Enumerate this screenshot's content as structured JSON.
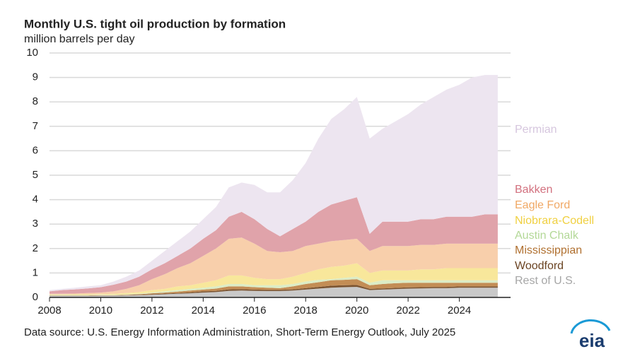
{
  "chart_data": {
    "type": "stacked_area",
    "title": "Monthly U.S. tight oil production by formation",
    "subtitle": "million barrels per day",
    "source": "Data source: U.S. Energy Information Administration, Short-Term Energy Outlook, July 2025",
    "logo": "eia",
    "x": [
      2008,
      2008.5,
      2009,
      2009.5,
      2010,
      2010.5,
      2011,
      2011.5,
      2012,
      2012.5,
      2013,
      2013.5,
      2014,
      2014.5,
      2015,
      2015.5,
      2016,
      2016.5,
      2017,
      2017.5,
      2018,
      2018.5,
      2019,
      2019.5,
      2020,
      2020.5,
      2021,
      2021.5,
      2022,
      2022.5,
      2023,
      2023.5,
      2024,
      2024.5,
      2025,
      2025.5
    ],
    "xlim": [
      2008,
      2026
    ],
    "xticks": [
      2008,
      2010,
      2012,
      2014,
      2016,
      2018,
      2020,
      2022,
      2024
    ],
    "ylim": [
      0,
      10
    ],
    "yticks": [
      0,
      1,
      2,
      3,
      4,
      5,
      6,
      7,
      8,
      9,
      10
    ],
    "grid": true,
    "series": [
      {
        "name": "Rest of U.S.",
        "color": "#c9c9c9",
        "label_color": "#a6a6a6",
        "values": [
          0.06,
          0.06,
          0.06,
          0.06,
          0.07,
          0.07,
          0.08,
          0.09,
          0.11,
          0.13,
          0.15,
          0.17,
          0.2,
          0.22,
          0.27,
          0.28,
          0.27,
          0.26,
          0.26,
          0.28,
          0.32,
          0.36,
          0.4,
          0.42,
          0.43,
          0.3,
          0.32,
          0.34,
          0.36,
          0.37,
          0.38,
          0.38,
          0.4,
          0.4,
          0.4,
          0.4
        ]
      },
      {
        "name": "Woodford",
        "color": "#7b5431",
        "label_color": "#6b4423",
        "values": [
          0.01,
          0.01,
          0.01,
          0.01,
          0.01,
          0.01,
          0.01,
          0.02,
          0.02,
          0.03,
          0.03,
          0.04,
          0.05,
          0.05,
          0.06,
          0.06,
          0.05,
          0.05,
          0.05,
          0.05,
          0.06,
          0.07,
          0.08,
          0.08,
          0.08,
          0.05,
          0.05,
          0.05,
          0.05,
          0.05,
          0.05,
          0.05,
          0.05,
          0.05,
          0.05,
          0.05
        ]
      },
      {
        "name": "Mississippian",
        "color": "#c38d55",
        "label_color": "#b07030",
        "values": [
          0.01,
          0.01,
          0.01,
          0.01,
          0.01,
          0.01,
          0.02,
          0.02,
          0.04,
          0.04,
          0.06,
          0.07,
          0.07,
          0.09,
          0.12,
          0.11,
          0.1,
          0.09,
          0.07,
          0.12,
          0.17,
          0.19,
          0.22,
          0.22,
          0.24,
          0.15,
          0.18,
          0.19,
          0.19,
          0.18,
          0.17,
          0.17,
          0.15,
          0.15,
          0.15,
          0.15
        ]
      },
      {
        "name": "Austin Chalk",
        "color": "#dcecc6",
        "label_color": "#b3d897",
        "values": [
          0.02,
          0.02,
          0.02,
          0.02,
          0.02,
          0.02,
          0.02,
          0.02,
          0.03,
          0.05,
          0.06,
          0.07,
          0.08,
          0.09,
          0.1,
          0.1,
          0.08,
          0.1,
          0.12,
          0.1,
          0.1,
          0.1,
          0.05,
          0.08,
          0.1,
          0.1,
          0.15,
          0.12,
          0.1,
          0.1,
          0.1,
          0.1,
          0.1,
          0.1,
          0.1,
          0.1
        ]
      },
      {
        "name": "Niobrara-Codell",
        "color": "#f8e79b",
        "label_color": "#f0d040",
        "values": [
          0.02,
          0.02,
          0.03,
          0.03,
          0.03,
          0.04,
          0.05,
          0.07,
          0.1,
          0.1,
          0.15,
          0.15,
          0.2,
          0.25,
          0.35,
          0.35,
          0.3,
          0.25,
          0.25,
          0.3,
          0.35,
          0.43,
          0.5,
          0.5,
          0.55,
          0.4,
          0.4,
          0.4,
          0.4,
          0.45,
          0.45,
          0.5,
          0.5,
          0.5,
          0.5,
          0.5
        ]
      },
      {
        "name": "Eagle Ford",
        "color": "#f8cfab",
        "label_color": "#f0a865",
        "values": [
          0.03,
          0.03,
          0.03,
          0.05,
          0.06,
          0.1,
          0.17,
          0.28,
          0.45,
          0.6,
          0.75,
          0.9,
          1.1,
          1.3,
          1.5,
          1.55,
          1.4,
          1.15,
          1.1,
          1.05,
          1.1,
          1.05,
          1.05,
          1.05,
          1.0,
          0.9,
          1.0,
          1.0,
          1.0,
          1.0,
          1.0,
          1.0,
          1.0,
          1.0,
          1.0,
          1.0
        ]
      },
      {
        "name": "Bakken",
        "color": "#e0a3aa",
        "label_color": "#d2707e",
        "values": [
          0.1,
          0.15,
          0.17,
          0.19,
          0.22,
          0.27,
          0.3,
          0.35,
          0.4,
          0.45,
          0.5,
          0.6,
          0.7,
          0.75,
          0.9,
          1.05,
          1.0,
          0.9,
          0.65,
          0.9,
          1.0,
          1.3,
          1.5,
          1.6,
          1.7,
          0.7,
          1.0,
          1.0,
          1.0,
          1.05,
          1.05,
          1.1,
          1.1,
          1.1,
          1.2,
          1.2
        ]
      },
      {
        "name": "Permian",
        "color": "#ede5f0",
        "label_color": "#d6c6de",
        "values": [
          0.05,
          0.05,
          0.07,
          0.08,
          0.08,
          0.13,
          0.2,
          0.25,
          0.35,
          0.5,
          0.6,
          0.7,
          0.8,
          0.95,
          1.2,
          1.2,
          1.4,
          1.5,
          1.8,
          2.0,
          2.4,
          3.0,
          3.5,
          3.75,
          4.1,
          3.9,
          3.8,
          4.1,
          4.4,
          4.7,
          5.0,
          5.2,
          5.4,
          5.7,
          5.7,
          5.7
        ]
      }
    ]
  }
}
